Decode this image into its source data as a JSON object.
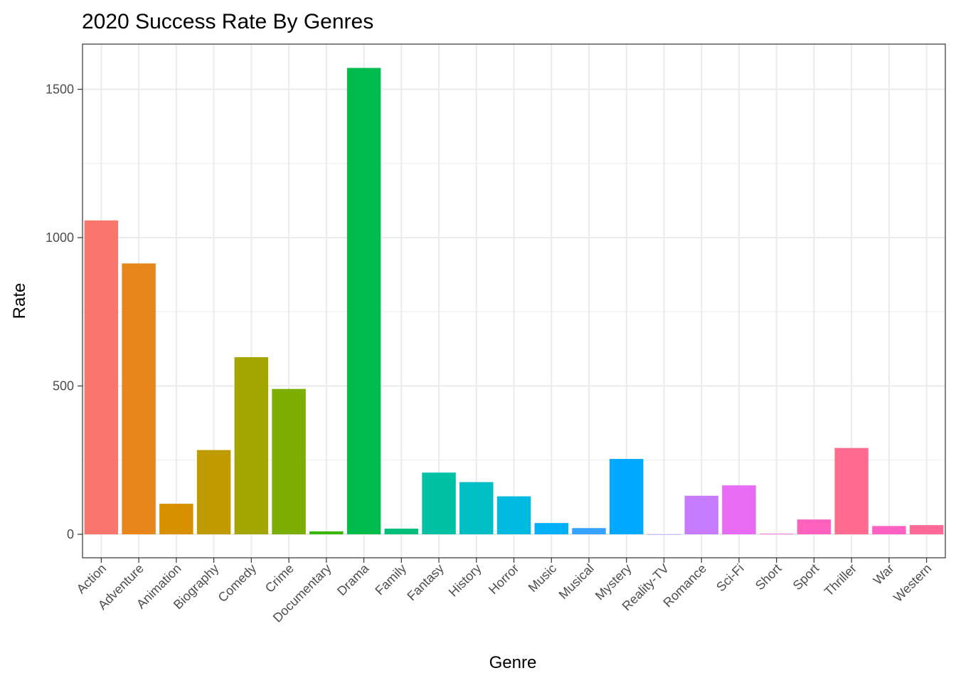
{
  "chart_data": {
    "type": "bar",
    "title": "2020 Success Rate By Genres",
    "xlabel": "Genre",
    "ylabel": "Rate",
    "ylim": [
      -80,
      1650
    ],
    "yticks": [
      0,
      500,
      1000,
      1500
    ],
    "grid": true,
    "legend": "none",
    "categories": [
      "Action",
      "Adventure",
      "Animation",
      "Biography",
      "Comedy",
      "Crime",
      "Documentary",
      "Drama",
      "Family",
      "Fantasy",
      "History",
      "Horror",
      "Music",
      "Musical",
      "Mystery",
      "Reality-TV",
      "Romance",
      "Sci-Fi",
      "Short",
      "Sport",
      "Thriller",
      "War",
      "Western"
    ],
    "values": [
      1058,
      913,
      103,
      284,
      597,
      490,
      10,
      1572,
      19,
      208,
      176,
      128,
      38,
      21,
      254,
      0,
      130,
      165,
      2,
      50,
      291,
      28,
      31
    ],
    "colors": [
      "#F8766D",
      "#E7861B",
      "#D89000",
      "#C09B00",
      "#A3A500",
      "#7CAE00",
      "#39B600",
      "#00BB4E",
      "#00BF7D",
      "#00C1A3",
      "#00BFC4",
      "#00BAE0",
      "#00B0F6",
      "#35A2FF",
      "#00A9FF",
      "#9590FF",
      "#C77CFF",
      "#E76BF3",
      "#FA62DB",
      "#FF62BC",
      "#FF6C90",
      "#FF61C3",
      "#FF6A98"
    ]
  }
}
